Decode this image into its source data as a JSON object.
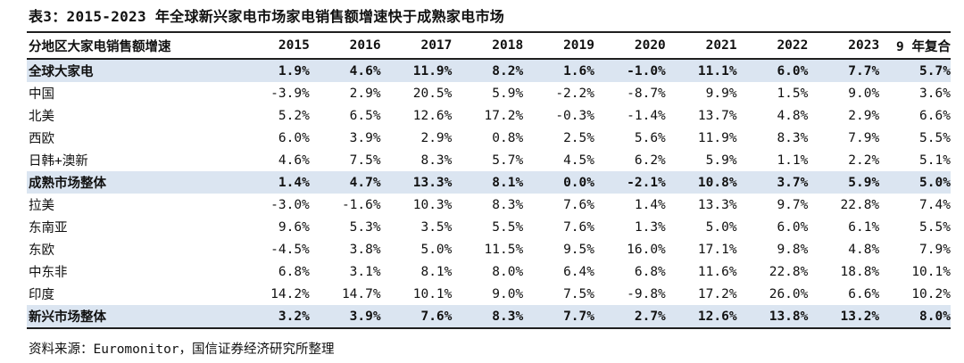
{
  "title": "表3：2015-2023 年全球新兴家电市场家电销售额增速快于成熟家电市场",
  "table": {
    "left_header": "分地区大家电销售额增速",
    "year_headers": [
      "2015",
      "2016",
      "2017",
      "2018",
      "2019",
      "2020",
      "2021",
      "2022",
      "2023",
      "9 年复合"
    ],
    "rows": [
      {
        "label": "全球大家电",
        "highlight": true,
        "values": [
          "1.9%",
          "4.6%",
          "11.9%",
          "8.2%",
          "1.6%",
          "-1.0%",
          "11.1%",
          "6.0%",
          "7.7%",
          "5.7%"
        ]
      },
      {
        "label": "中国",
        "highlight": false,
        "values": [
          "-3.9%",
          "2.9%",
          "20.5%",
          "5.9%",
          "-2.2%",
          "-8.7%",
          "9.9%",
          "1.5%",
          "9.0%",
          "3.6%"
        ]
      },
      {
        "label": "北美",
        "highlight": false,
        "values": [
          "5.2%",
          "6.5%",
          "12.6%",
          "17.2%",
          "-0.3%",
          "-1.4%",
          "13.7%",
          "4.8%",
          "2.9%",
          "6.6%"
        ]
      },
      {
        "label": "西欧",
        "highlight": false,
        "values": [
          "6.0%",
          "3.9%",
          "2.9%",
          "0.8%",
          "2.5%",
          "5.6%",
          "11.9%",
          "8.3%",
          "7.9%",
          "5.5%"
        ]
      },
      {
        "label": "日韩+澳新",
        "highlight": false,
        "values": [
          "4.6%",
          "7.5%",
          "8.3%",
          "5.7%",
          "4.5%",
          "6.2%",
          "5.9%",
          "1.1%",
          "2.2%",
          "5.1%"
        ]
      },
      {
        "label": "成熟市场整体",
        "highlight": true,
        "values": [
          "1.4%",
          "4.7%",
          "13.3%",
          "8.1%",
          "0.0%",
          "-2.1%",
          "10.8%",
          "3.7%",
          "5.9%",
          "5.0%"
        ]
      },
      {
        "label": "拉美",
        "highlight": false,
        "values": [
          "-3.0%",
          "-1.6%",
          "10.3%",
          "8.3%",
          "7.6%",
          "1.4%",
          "13.3%",
          "9.7%",
          "22.8%",
          "7.4%"
        ]
      },
      {
        "label": "东南亚",
        "highlight": false,
        "values": [
          "9.6%",
          "5.3%",
          "3.5%",
          "5.5%",
          "7.6%",
          "1.3%",
          "5.0%",
          "6.0%",
          "6.1%",
          "5.5%"
        ]
      },
      {
        "label": "东欧",
        "highlight": false,
        "values": [
          "-4.5%",
          "3.8%",
          "5.0%",
          "11.5%",
          "9.5%",
          "16.0%",
          "17.1%",
          "9.8%",
          "4.8%",
          "7.9%"
        ]
      },
      {
        "label": "中东非",
        "highlight": false,
        "values": [
          "6.8%",
          "3.1%",
          "8.1%",
          "8.0%",
          "6.4%",
          "6.8%",
          "11.6%",
          "22.8%",
          "18.8%",
          "10.1%"
        ]
      },
      {
        "label": "印度",
        "highlight": false,
        "values": [
          "14.2%",
          "14.7%",
          "10.1%",
          "9.0%",
          "7.5%",
          "-9.8%",
          "17.2%",
          "26.0%",
          "6.6%",
          "10.2%"
        ]
      },
      {
        "label": "新兴市场整体",
        "highlight": true,
        "values": [
          "3.2%",
          "3.9%",
          "7.6%",
          "8.3%",
          "7.7%",
          "2.7%",
          "12.6%",
          "13.8%",
          "13.2%",
          "8.0%"
        ]
      }
    ]
  },
  "footer": {
    "source": "资料来源：Euromonitor，国信证券经济研究所整理"
  },
  "colors": {
    "highlight_row_bg": "#dbe5f1",
    "rule": "#1f1f1f",
    "text": "#111111"
  }
}
